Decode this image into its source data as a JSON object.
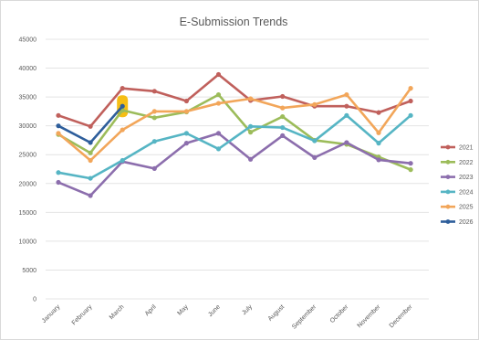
{
  "chart_data": {
    "type": "line",
    "title": "E-Submission Trends",
    "xlabel": "",
    "ylabel": "",
    "categories": [
      "January",
      "February",
      "March",
      "April",
      "May",
      "June",
      "July",
      "August",
      "September",
      "October",
      "November",
      "December"
    ],
    "ylim": [
      0,
      45000
    ],
    "yticks": [
      0,
      5000,
      10000,
      15000,
      20000,
      25000,
      30000,
      35000,
      40000,
      45000
    ],
    "grid": true,
    "legend": "right",
    "highlight": {
      "series": "2026",
      "category": "March",
      "color": "#f5b800"
    },
    "series": [
      {
        "name": "2021",
        "color": "#c0605c",
        "values": [
          31800,
          29900,
          36500,
          36000,
          34300,
          38900,
          34400,
          35100,
          33400,
          33400,
          32300,
          34300
        ]
      },
      {
        "name": "2022",
        "color": "#9cbc5a",
        "values": [
          28500,
          25300,
          32700,
          31400,
          32400,
          35400,
          28900,
          31600,
          27500,
          26800,
          24600,
          22400
        ]
      },
      {
        "name": "2023",
        "color": "#8c6ead",
        "values": [
          20200,
          17900,
          23800,
          22600,
          27000,
          28700,
          24200,
          28300,
          24500,
          27100,
          24100,
          23500
        ]
      },
      {
        "name": "2024",
        "color": "#56b5c4",
        "values": [
          21900,
          20900,
          24000,
          27300,
          28700,
          26000,
          29900,
          29700,
          27400,
          31800,
          27000,
          31800
        ]
      },
      {
        "name": "2025",
        "color": "#f2a65a",
        "values": [
          28700,
          24000,
          29300,
          32500,
          32500,
          33900,
          34700,
          33100,
          33700,
          35400,
          28800,
          36500
        ]
      },
      {
        "name": "2026",
        "color": "#2e5e9b",
        "values": [
          30000,
          27100,
          33400,
          null,
          null,
          null,
          null,
          null,
          null,
          null,
          null,
          null
        ]
      }
    ]
  }
}
